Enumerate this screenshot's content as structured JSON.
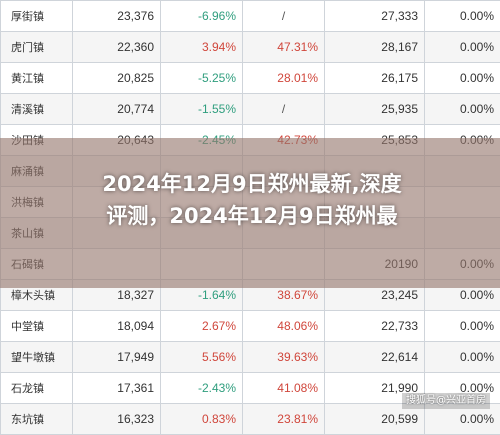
{
  "table": {
    "rows": [
      {
        "town": "厚街镇",
        "value": "23,376",
        "growth": "-6.96%",
        "share": "/",
        "value2": "27,333",
        "share2": "0.00%"
      },
      {
        "town": "虎门镇",
        "value": "22,360",
        "growth": "3.94%",
        "share": "47.31%",
        "value2": "28,167",
        "share2": "0.00%"
      },
      {
        "town": "黄江镇",
        "value": "20,825",
        "growth": "-5.25%",
        "share": "28.01%",
        "value2": "26,175",
        "share2": "0.00%"
      },
      {
        "town": "清溪镇",
        "value": "20,774",
        "growth": "-1.55%",
        "share": "/",
        "value2": "25,935",
        "share2": "0.00%"
      },
      {
        "town": "沙田镇",
        "value": "20,643",
        "growth": "-2.45%",
        "share": "42.73%",
        "value2": "25,853",
        "share2": "0.00%"
      },
      {
        "town": "麻涌镇",
        "value": "",
        "growth": "",
        "share": "",
        "value2": "",
        "share2": ""
      },
      {
        "town": "洪梅镇",
        "value": "",
        "growth": "",
        "share": "",
        "value2": "",
        "share2": ""
      },
      {
        "town": "茶山镇",
        "value": "",
        "growth": "",
        "share": "",
        "value2": "",
        "share2": ""
      },
      {
        "town": "石碣镇",
        "value": "",
        "growth": "",
        "share": "",
        "value2": "20190",
        "share2": "0.00%"
      },
      {
        "town": "樟木头镇",
        "value": "18,327",
        "growth": "-1.64%",
        "share": "38.67%",
        "value2": "23,245",
        "share2": "0.00%"
      },
      {
        "town": "中堂镇",
        "value": "18,094",
        "growth": "2.67%",
        "share": "48.06%",
        "value2": "22,733",
        "share2": "0.00%"
      },
      {
        "town": "望牛墩镇",
        "value": "17,949",
        "growth": "5.56%",
        "share": "39.63%",
        "value2": "22,614",
        "share2": "0.00%"
      },
      {
        "town": "石龙镇",
        "value": "17,361",
        "growth": "-2.43%",
        "share": "41.08%",
        "value2": "21,990",
        "share2": "0.00%"
      },
      {
        "town": "东坑镇",
        "value": "16,323",
        "growth": "0.83%",
        "share": "23.81%",
        "value2": "20,599",
        "share2": "0.00%"
      }
    ]
  },
  "overlay": {
    "headline_line1": "2024年12月9日郑州最新,深度",
    "headline_line2": "评测，2024年12月9日郑州最"
  },
  "watermark": "搜狐号@兴亚首房",
  "colors": {
    "positive": "#d0463b",
    "negative": "#2f9e7e",
    "banner": "#96786e"
  }
}
